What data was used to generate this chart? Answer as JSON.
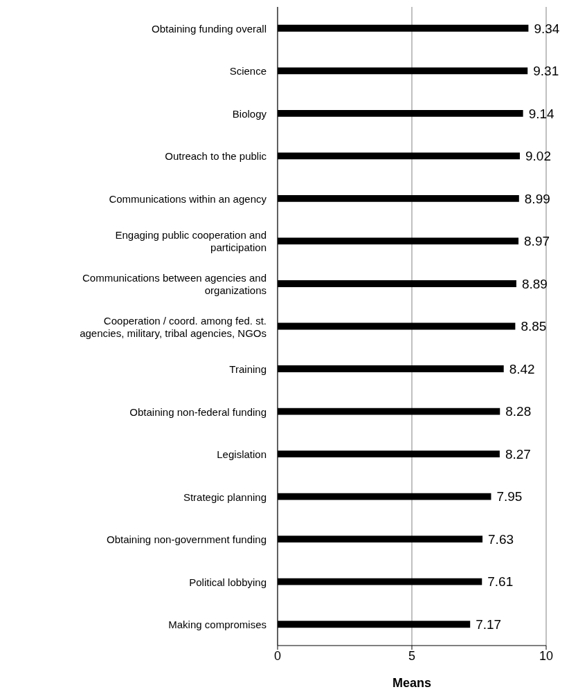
{
  "chart_data": {
    "type": "bar",
    "orientation": "horizontal",
    "xlabel": "Means",
    "categories": [
      "Obtaining funding overall",
      "Science",
      "Biology",
      "Outreach to the public",
      "Communications within an agency",
      "Engaging public cooperation and participation",
      "Communications between agencies and organizations",
      "Cooperation / coord. among fed. st. agencies, military, tribal agencies, NGOs",
      "Training",
      "Obtaining non-federal funding",
      "Legislation",
      "Strategic planning",
      "Obtaining non-government funding",
      "Political lobbying",
      "Making compromises"
    ],
    "values": [
      9.34,
      9.31,
      9.14,
      9.02,
      8.99,
      8.97,
      8.89,
      8.85,
      8.42,
      8.28,
      8.27,
      7.95,
      7.63,
      7.61,
      7.17
    ],
    "color": "#000000",
    "xlim": [
      0,
      10
    ],
    "xticks": [
      0,
      5,
      10
    ],
    "grid": "x",
    "data_labels": true
  }
}
